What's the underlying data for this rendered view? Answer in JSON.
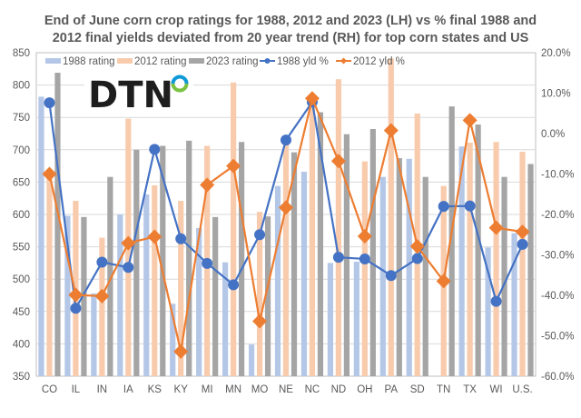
{
  "chart_data": {
    "type": "bar",
    "title_line1": "End of June corn crop ratings for 1988, 2012 and 2023 (LH) vs % final 1988 and",
    "title_line2": "2012 final yields deviated from 20 year trend (RH) for top corn states and US",
    "logo": "DTN",
    "categories": [
      "CO",
      "IL",
      "IN",
      "IA",
      "KS",
      "KY",
      "MI",
      "MN",
      "MO",
      "NE",
      "NC",
      "ND",
      "OH",
      "PA",
      "SD",
      "TN",
      "TX",
      "WI",
      "U.S."
    ],
    "y_left": {
      "min": 350,
      "max": 850,
      "step": 50,
      "ticks": [
        "850",
        "800",
        "750",
        "700",
        "650",
        "600",
        "550",
        "500",
        "450",
        "400",
        "350"
      ]
    },
    "y_right": {
      "min": -60,
      "max": 20,
      "step": 10,
      "ticks": [
        "20.0%",
        "10.0%",
        "0.0%",
        "-10.0%",
        "-20.0%",
        "-30.0%",
        "-40.0%",
        "-50.0%",
        "-60.0%"
      ]
    },
    "grid": true,
    "legend_position": "top",
    "series": [
      {
        "name": "1988 rating",
        "type": "bar",
        "axis": "left",
        "color": "#b4c7e7",
        "values": [
          782,
          598,
          478,
          600,
          631,
          462,
          579,
          526,
          399,
          644,
          666,
          525,
          527,
          658,
          686,
          null,
          705,
          549,
          571
        ]
      },
      {
        "name": "2012 rating",
        "type": "bar",
        "axis": "left",
        "color": "#f8cbad",
        "values": [
          660,
          621,
          564,
          748,
          645,
          621,
          706,
          804,
          604,
          714,
          775,
          809,
          682,
          841,
          756,
          644,
          711,
          712,
          697
        ]
      },
      {
        "name": "2023 rating",
        "type": "bar",
        "axis": "left",
        "color": "#a5a5a5",
        "values": [
          819,
          596,
          658,
          700,
          706,
          714,
          596,
          712,
          597,
          696,
          758,
          724,
          732,
          687,
          658,
          767,
          739,
          658,
          678
        ]
      },
      {
        "name": "1988 yld %",
        "type": "line",
        "axis": "right",
        "color": "#4472c4",
        "marker": "circle",
        "values": [
          7.6,
          -43.2,
          -31.8,
          -33.1,
          -3.9,
          -26.0,
          -32.1,
          -37.4,
          -25.0,
          -1.6,
          7.8,
          -30.6,
          -31.0,
          -35.1,
          -30.9,
          -18.0,
          -17.9,
          -41.5,
          -27.4
        ]
      },
      {
        "name": "2012 yld %",
        "type": "line",
        "axis": "right",
        "color": "#ed7d31",
        "marker": "diamond",
        "values": [
          -10.0,
          -39.9,
          -40.2,
          -27.1,
          -25.5,
          -53.9,
          -12.7,
          -8.0,
          -46.4,
          -18.3,
          8.7,
          -6.8,
          -25.4,
          0.8,
          -27.9,
          -36.5,
          3.3,
          -23.3,
          -24.3
        ]
      }
    ]
  }
}
